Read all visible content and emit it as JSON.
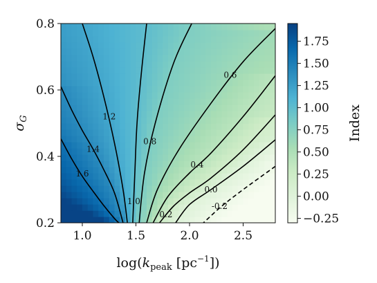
{
  "chart_data": {
    "type": "heatmap",
    "title": "",
    "xlabel_parts": {
      "pre": "log(",
      "var": "k",
      "sub": "peak",
      "unit": "[pc",
      "exp": "−1",
      "post": "])"
    },
    "ylabel_parts": {
      "var": "σ",
      "sub": "G"
    },
    "colorbar_label": "Index",
    "xlim": [
      0.8,
      2.8
    ],
    "ylim": [
      0.2,
      0.8
    ],
    "x_ticks": [
      "1.0",
      "1.5",
      "2.0",
      "2.5"
    ],
    "y_ticks": [
      "0.2",
      "0.4",
      "0.6",
      "0.8"
    ],
    "colorbar_range": [
      -0.3,
      1.95
    ],
    "colorbar_ticks": [
      "−0.25",
      "0.00",
      "0.25",
      "0.50",
      "0.75",
      "1.00",
      "1.25",
      "1.50",
      "1.75"
    ],
    "colormap": [
      "#f7fcf0",
      "#e0f3db",
      "#ccebc5",
      "#a8ddb5",
      "#7bccc4",
      "#4eb3d3",
      "#2b8cbe",
      "#0868ac",
      "#084081"
    ],
    "grid": false,
    "contours": [
      {
        "level": 1.6,
        "label": "1.6",
        "linestyle": "solid",
        "points": [
          [
            0.8,
            0.453
          ],
          [
            0.9,
            0.393
          ],
          [
            1.0,
            0.34
          ],
          [
            1.1,
            0.295
          ],
          [
            1.2,
            0.252
          ],
          [
            1.3,
            0.213
          ],
          [
            1.34,
            0.2
          ]
        ]
      },
      {
        "level": 1.4,
        "label": "1.4",
        "linestyle": "solid",
        "points": [
          [
            0.8,
            0.61
          ],
          [
            0.9,
            0.54
          ],
          [
            1.0,
            0.478
          ],
          [
            1.1,
            0.422
          ],
          [
            1.2,
            0.36
          ],
          [
            1.3,
            0.29
          ],
          [
            1.38,
            0.2
          ]
        ]
      },
      {
        "level": 1.2,
        "label": "1.2",
        "linestyle": "solid",
        "points": [
          [
            1.0,
            0.8
          ],
          [
            1.1,
            0.7
          ],
          [
            1.2,
            0.58
          ],
          [
            1.3,
            0.44
          ],
          [
            1.38,
            0.3
          ],
          [
            1.42,
            0.2
          ]
        ]
      },
      {
        "level": 1.0,
        "label": "1.0",
        "linestyle": "solid",
        "points": [
          [
            1.6,
            0.8
          ],
          [
            1.55,
            0.65
          ],
          [
            1.51,
            0.5
          ],
          [
            1.49,
            0.35
          ],
          [
            1.47,
            0.2
          ]
        ]
      },
      {
        "level": 0.8,
        "label": "0.8",
        "linestyle": "solid",
        "points": [
          [
            2.02,
            0.8
          ],
          [
            1.85,
            0.68
          ],
          [
            1.68,
            0.5
          ],
          [
            1.58,
            0.35
          ],
          [
            1.53,
            0.2
          ]
        ]
      },
      {
        "level": 0.6,
        "label": "0.6",
        "linestyle": "solid",
        "points": [
          [
            2.8,
            0.785
          ],
          [
            2.5,
            0.685
          ],
          [
            2.2,
            0.56
          ],
          [
            1.9,
            0.42
          ],
          [
            1.7,
            0.3
          ],
          [
            1.6,
            0.2
          ]
        ]
      },
      {
        "level": 0.4,
        "label": "0.4",
        "linestyle": "solid",
        "points": [
          [
            2.8,
            0.643
          ],
          [
            2.5,
            0.52
          ],
          [
            2.2,
            0.41
          ],
          [
            2.0,
            0.35
          ],
          [
            1.8,
            0.28
          ],
          [
            1.66,
            0.2
          ]
        ]
      },
      {
        "level": 0.2,
        "label": "0.2",
        "linestyle": "solid",
        "points": [
          [
            2.8,
            0.525
          ],
          [
            2.5,
            0.42
          ],
          [
            2.2,
            0.335
          ],
          [
            2.0,
            0.29
          ],
          [
            1.85,
            0.25
          ],
          [
            1.72,
            0.2
          ]
        ]
      },
      {
        "level": 0.0,
        "label": "0.0",
        "linestyle": "solid",
        "points": [
          [
            2.8,
            0.45
          ],
          [
            2.5,
            0.37
          ],
          [
            2.2,
            0.3
          ],
          [
            2.0,
            0.255
          ],
          [
            1.87,
            0.2
          ]
        ]
      },
      {
        "level": -0.2,
        "label": "-0.2",
        "linestyle": "dashed",
        "points": [
          [
            2.8,
            0.37
          ],
          [
            2.5,
            0.3
          ],
          [
            2.3,
            0.25
          ],
          [
            2.13,
            0.2
          ]
        ]
      }
    ],
    "contour_label_positions": [
      {
        "text": "1.6",
        "x": 1.0,
        "y": 0.348
      },
      {
        "text": "1.4",
        "x": 1.1,
        "y": 0.422
      },
      {
        "text": "1.2",
        "x": 1.25,
        "y": 0.52
      },
      {
        "text": "1.0",
        "x": 1.48,
        "y": 0.265
      },
      {
        "text": "0.8",
        "x": 1.63,
        "y": 0.445
      },
      {
        "text": "0.6",
        "x": 2.38,
        "y": 0.645
      },
      {
        "text": "0.4",
        "x": 2.07,
        "y": 0.375
      },
      {
        "text": "0.2",
        "x": 1.78,
        "y": 0.225
      },
      {
        "text": "0.0",
        "x": 2.2,
        "y": 0.3
      },
      {
        "text": "-0.2",
        "x": 2.28,
        "y": 0.25
      }
    ]
  }
}
